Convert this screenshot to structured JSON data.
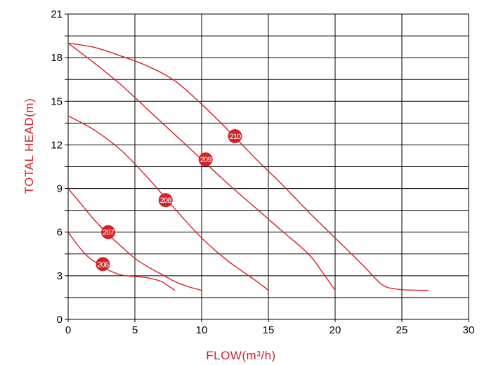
{
  "chart_data": {
    "type": "line",
    "xlabel": "FLOW(m³/h)",
    "ylabel": "TOTAL HEAD(m)",
    "xlim": [
      0,
      30
    ],
    "ylim": [
      0,
      21
    ],
    "x_ticks": [
      0,
      5,
      10,
      15,
      20,
      25,
      30
    ],
    "y_ticks": [
      0,
      3,
      6,
      9,
      12,
      15,
      18,
      21
    ],
    "x_tick_labels": [
      "0",
      "5",
      "10",
      "15",
      "20",
      "25",
      "30"
    ],
    "y_tick_labels": [
      "0",
      "3",
      "6",
      "9",
      "12",
      "15",
      "18",
      "21"
    ],
    "grid": true,
    "grid_y_step": 1.5,
    "grid_x_step": 5,
    "curve_color": "#d2232a",
    "series": [
      {
        "marker_label": "206",
        "marker_at": [
          2.6,
          3.8
        ],
        "points": [
          [
            0,
            6.0
          ],
          [
            0.8,
            5.0
          ],
          [
            1.5,
            4.3
          ],
          [
            2.2,
            3.85
          ],
          [
            3,
            3.4
          ],
          [
            4,
            3.05
          ],
          [
            5,
            2.95
          ],
          [
            6,
            2.85
          ],
          [
            7,
            2.6
          ],
          [
            7.5,
            2.3
          ],
          [
            8,
            2.0
          ]
        ]
      },
      {
        "marker_label": "207",
        "marker_at": [
          3.0,
          6.0
        ],
        "points": [
          [
            0,
            9.0
          ],
          [
            1,
            7.9
          ],
          [
            2,
            6.8
          ],
          [
            3,
            5.85
          ],
          [
            4,
            5.0
          ],
          [
            5,
            4.2
          ],
          [
            6,
            3.6
          ],
          [
            7,
            3.1
          ],
          [
            8,
            2.6
          ],
          [
            9,
            2.25
          ],
          [
            10,
            2.0
          ]
        ]
      },
      {
        "marker_label": "208",
        "marker_at": [
          7.3,
          8.2
        ],
        "points": [
          [
            0,
            14.0
          ],
          [
            2,
            13.0
          ],
          [
            4,
            11.6
          ],
          [
            6,
            9.7
          ],
          [
            8,
            7.6
          ],
          [
            10,
            5.6
          ],
          [
            12,
            4.0
          ],
          [
            14,
            2.7
          ],
          [
            15,
            2.0
          ]
        ]
      },
      {
        "marker_label": "209",
        "marker_at": [
          10.3,
          11.0
        ],
        "points": [
          [
            0,
            19.0
          ],
          [
            2,
            17.6
          ],
          [
            4,
            16.1
          ],
          [
            6,
            14.4
          ],
          [
            8,
            12.7
          ],
          [
            10,
            11.0
          ],
          [
            12,
            9.3
          ],
          [
            14,
            7.7
          ],
          [
            16,
            6.1
          ],
          [
            18,
            4.5
          ],
          [
            19,
            3.3
          ],
          [
            20,
            2.0
          ]
        ]
      },
      {
        "marker_label": "210",
        "marker_at": [
          12.5,
          12.6
        ],
        "points": [
          [
            0,
            19.0
          ],
          [
            2,
            18.7
          ],
          [
            4,
            18.1
          ],
          [
            6,
            17.4
          ],
          [
            8,
            16.4
          ],
          [
            10,
            14.8
          ],
          [
            12,
            13.0
          ],
          [
            14,
            11.1
          ],
          [
            16,
            9.3
          ],
          [
            18,
            7.4
          ],
          [
            20,
            5.6
          ],
          [
            22,
            3.8
          ],
          [
            23.5,
            2.4
          ],
          [
            24.5,
            2.1
          ],
          [
            25.5,
            2.02
          ],
          [
            27,
            2.0
          ]
        ]
      }
    ]
  }
}
